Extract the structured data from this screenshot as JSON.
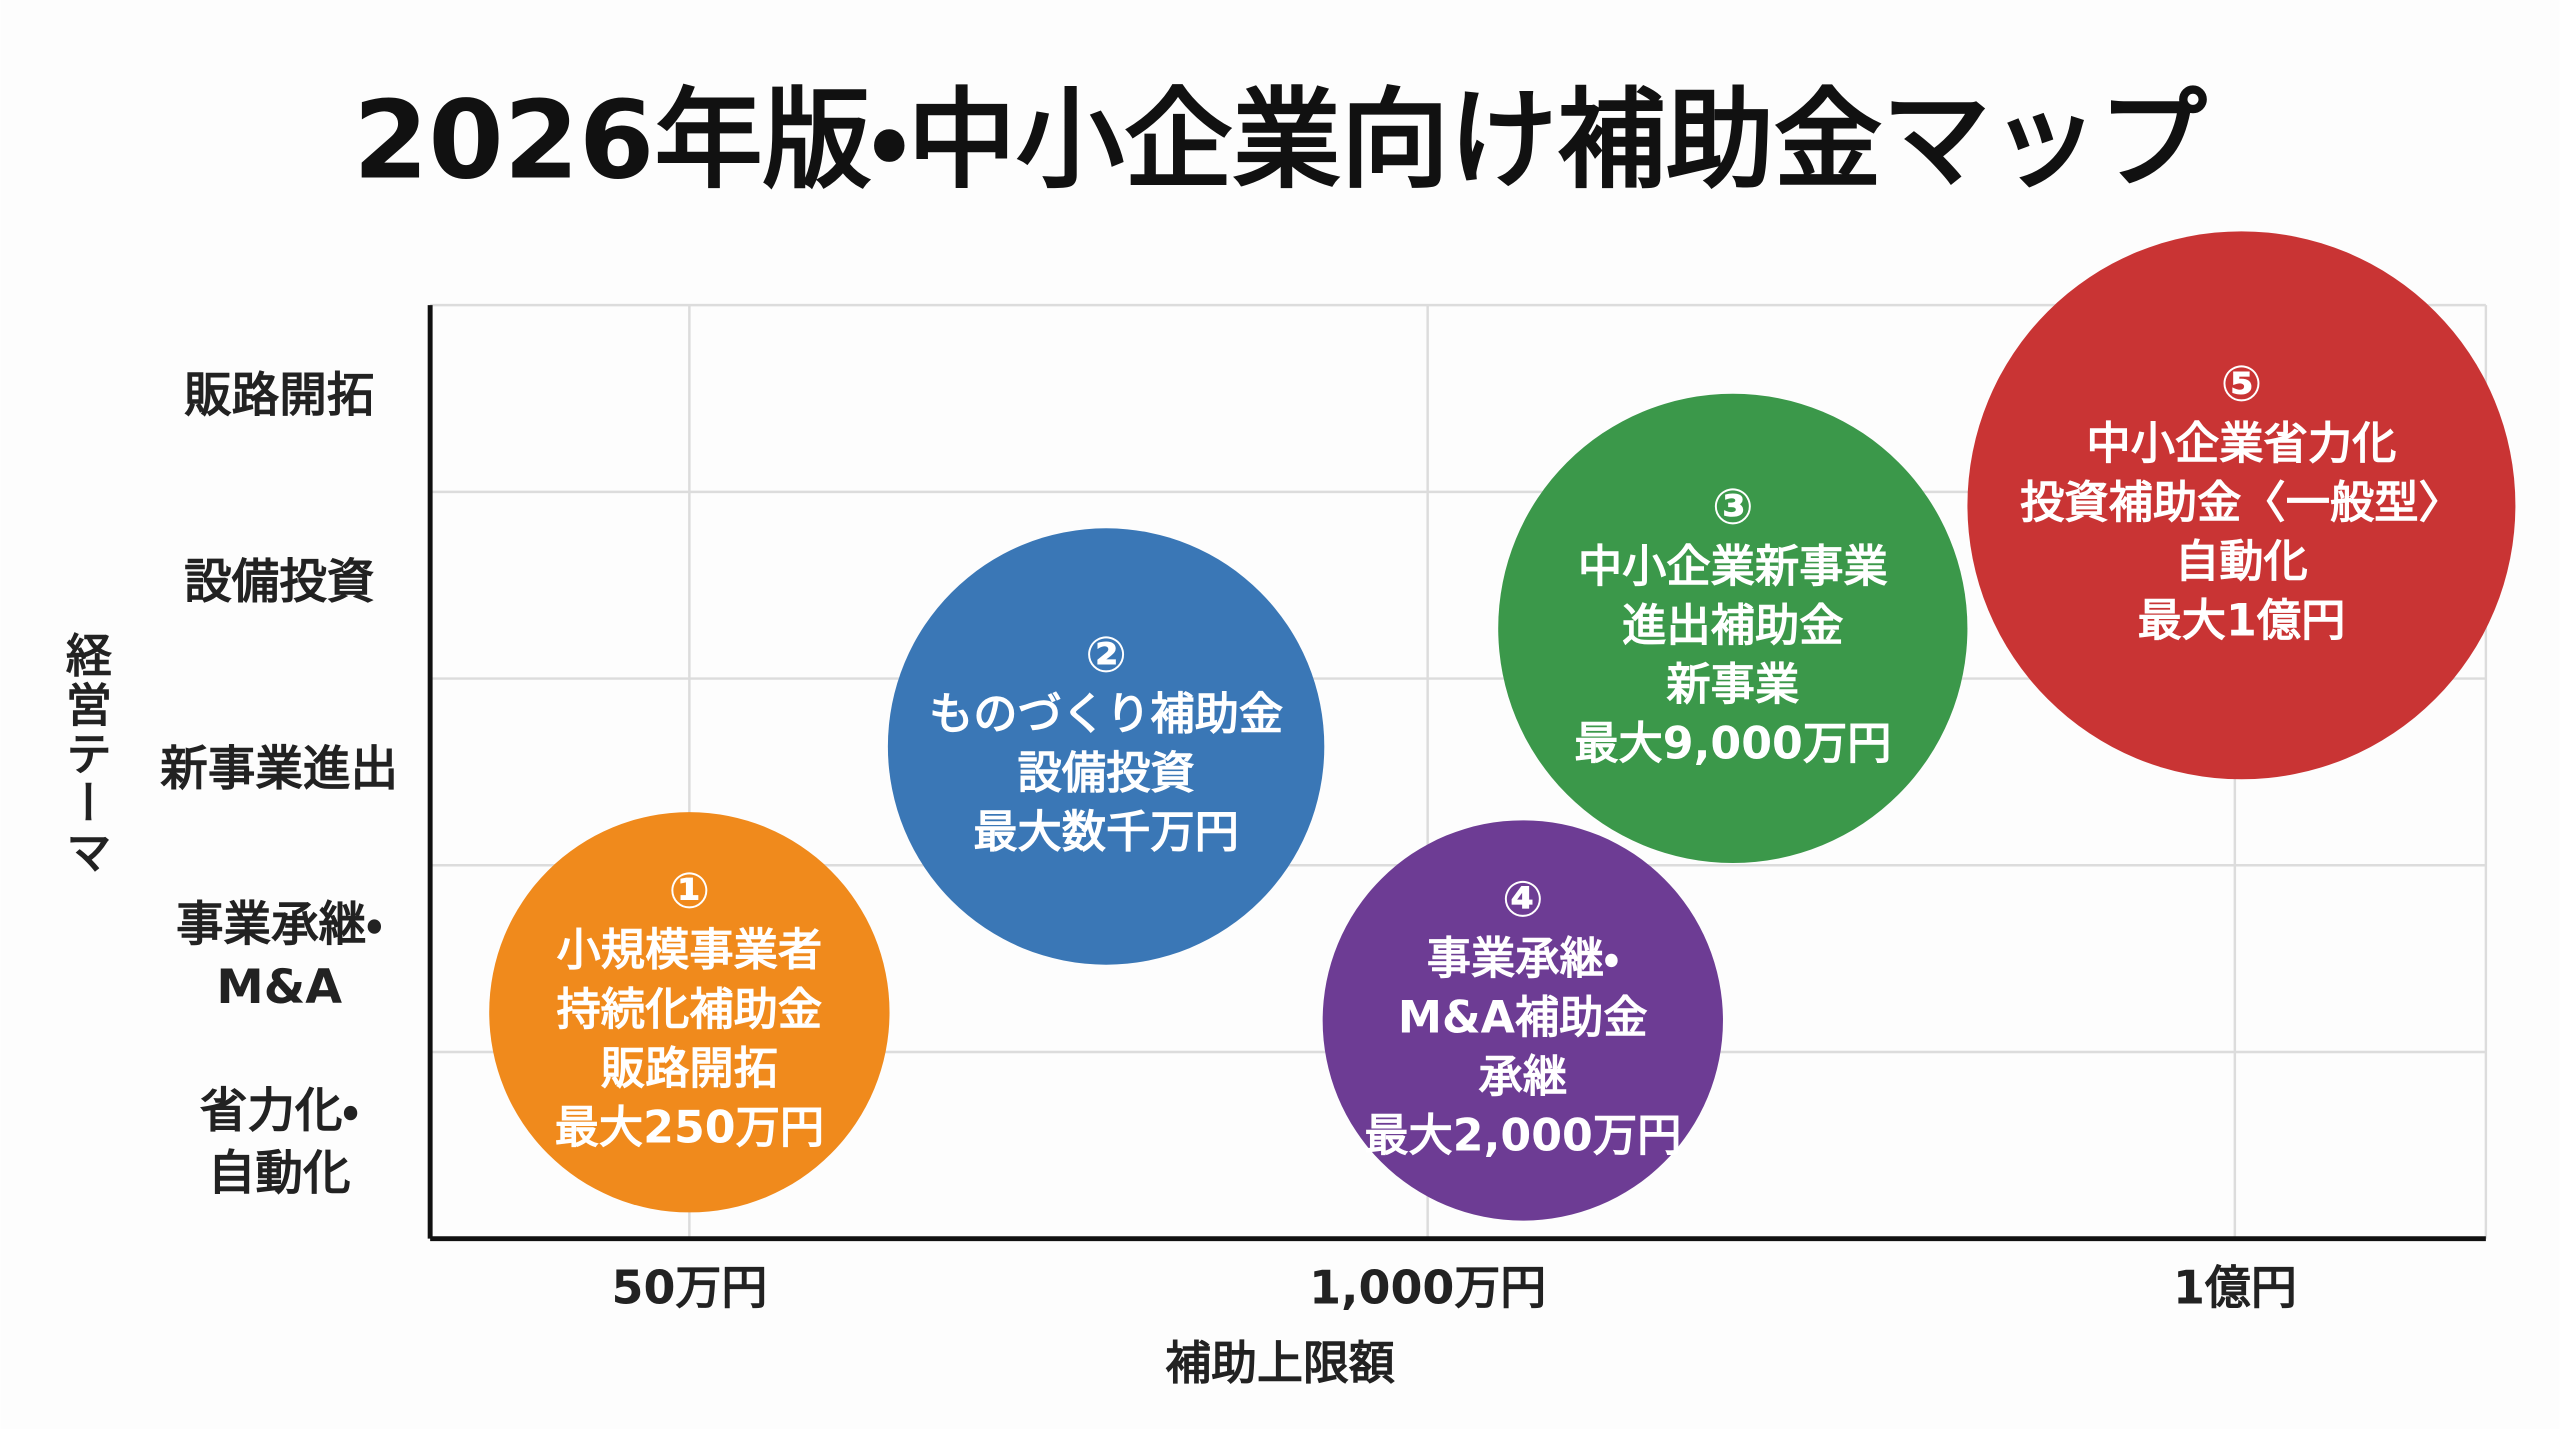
{
  "title": "2026年版・中小企業向け補助金マップ",
  "y_axis": {
    "label": "経営テーマ",
    "categories": [
      "販路開拓",
      "設備投資",
      "新事業進出",
      [
        "事業承継・",
        "M&A"
      ],
      [
        "省力化・",
        "自動化"
      ]
    ]
  },
  "x_axis": {
    "label": "補助上限額",
    "ticks": [
      "50万円",
      "1,000万円",
      "1億円"
    ]
  },
  "bubbles": [
    {
      "number": "①",
      "lines": [
        "小規模事業者",
        "持続化補助金",
        "販路開拓",
        "最大250万円"
      ],
      "color": "#f08a1c"
    },
    {
      "number": "②",
      "lines": [
        "ものづくり補助金",
        "設備投資",
        "最大数千万円"
      ],
      "color": "#3a77b6"
    },
    {
      "number": "③",
      "lines": [
        "中小企業新事業",
        "進出補助金",
        "新事業",
        "最大9,000万円"
      ],
      "color": "#3b984a"
    },
    {
      "number": "④",
      "lines": [
        "事業承継・",
        "M&A補助金",
        "承継",
        "最大2,000万円"
      ],
      "color": "#6d3c94"
    },
    {
      "number": "⑤",
      "lines": [
        "中小企業省力化",
        "投資補助金〈一般型〉",
        "自動化",
        "最大1億円"
      ],
      "color": "#c93434"
    }
  ]
}
